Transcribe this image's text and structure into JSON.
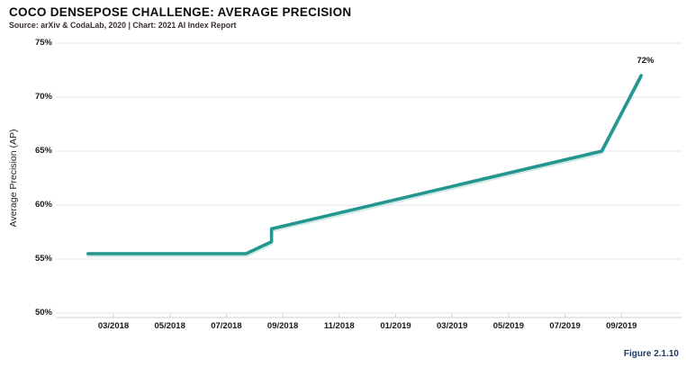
{
  "header": {
    "title": "COCO DENSEPOSE CHALLENGE: AVERAGE PRECISION",
    "source": "Source: arXiv & CodaLab, 2020 | Chart: 2021 AI Index Report"
  },
  "figure_label": "Figure 2.1.10",
  "colors": {
    "line": "#23968f",
    "line_shadow": "#a9d7d3",
    "grid": "#e3e3e3",
    "axis": "#cfcfcf",
    "tick": "#cfcfcf",
    "text": "#1a1a1a",
    "source_text": "#3a2e2c",
    "figure_label": "#1d3a66"
  },
  "chart_data": {
    "type": "line",
    "title": "COCO DENSEPOSE CHALLENGE: AVERAGE PRECISION",
    "source": "Source: arXiv & CodaLab, 2020 | Chart: 2021 AI Index Report",
    "xlabel": "",
    "ylabel": "Average Precision (AP)",
    "ylim": [
      50,
      75
    ],
    "grid": true,
    "legend": "none",
    "y_ticks": [
      {
        "value": 75,
        "label": "75%"
      },
      {
        "value": 70,
        "label": "70%"
      },
      {
        "value": 65,
        "label": "65%"
      },
      {
        "value": 60,
        "label": "60%"
      },
      {
        "value": 55,
        "label": "55%"
      },
      {
        "value": 50,
        "label": "50%"
      }
    ],
    "x_ticks": [
      "03/2018",
      "05/2018",
      "07/2018",
      "09/2018",
      "11/2018",
      "01/2019",
      "03/2019",
      "05/2019",
      "07/2019",
      "09/2019"
    ],
    "series": [
      {
        "name": "Average Precision (AP)",
        "points": [
          {
            "date": "02/2018",
            "t": -0.9,
            "value": 55.5
          },
          {
            "date": "07/2018",
            "t": 4.7,
            "value": 55.5
          },
          {
            "date": "08/2018",
            "t": 5.6,
            "value": 56.6
          },
          {
            "date": "09/2018",
            "t": 5.6,
            "value": 57.8
          },
          {
            "date": "08/2019",
            "t": 17.3,
            "value": 65
          },
          {
            "date": "10/2019",
            "t": 18.7,
            "value": 72
          }
        ]
      }
    ],
    "end_point_label": "72%"
  }
}
